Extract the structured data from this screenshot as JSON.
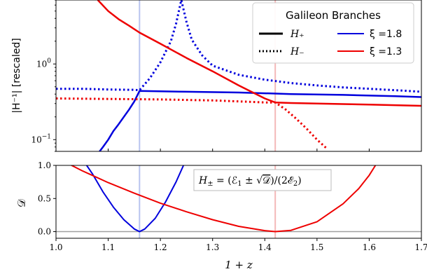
{
  "chart_data": [
    {
      "type": "line",
      "yscale": "log",
      "ylabel": "|H⁻¹| [rescaled]",
      "xlim": [
        1.0,
        1.7
      ],
      "ylim": [
        0.07,
        7.0
      ],
      "yticks": [
        {
          "value": 0.1,
          "base": "10",
          "exp": "−1"
        },
        {
          "value": 1.0,
          "base": "10",
          "exp": "0"
        }
      ],
      "vlines": [
        {
          "x": 1.16,
          "color": "#b8c4ee"
        },
        {
          "x": 1.42,
          "color": "#f4b8b8"
        }
      ],
      "legend": {
        "title": "Galileon Branches",
        "placement": "top-right",
        "style_entries": [
          {
            "label": "H₊",
            "dash": "solid"
          },
          {
            "label": "H₋",
            "dash": "dotted"
          }
        ],
        "color_entries": [
          {
            "label": "ξ =1.8",
            "color": "#0000dd"
          },
          {
            "label": "ξ =1.3",
            "color": "#ee0000"
          }
        ]
      },
      "series": [
        {
          "xi": 1.8,
          "branch": "H+",
          "color": "#0000dd",
          "dash": "solid",
          "x": [
            1.08,
            1.09,
            1.1,
            1.11,
            1.12,
            1.13,
            1.14,
            1.15,
            1.16,
            1.25,
            1.35,
            1.45,
            1.55,
            1.65,
            1.7
          ],
          "y": [
            0.065,
            0.08,
            0.1,
            0.13,
            0.16,
            0.2,
            0.25,
            0.32,
            0.44,
            0.43,
            0.42,
            0.4,
            0.39,
            0.375,
            0.365
          ]
        },
        {
          "xi": 1.8,
          "branch": "H-",
          "color": "#0000dd",
          "dash": "dotted",
          "x": [
            1.0,
            1.05,
            1.1,
            1.15,
            1.16,
            1.18,
            1.2,
            1.22,
            1.23,
            1.24,
            1.25,
            1.26,
            1.28,
            1.3,
            1.35,
            1.4,
            1.45,
            1.5,
            1.55,
            1.6,
            1.65,
            1.7
          ],
          "y": [
            0.47,
            0.47,
            0.46,
            0.455,
            0.45,
            0.65,
            1.05,
            2.0,
            3.4,
            7.0,
            3.6,
            2.1,
            1.3,
            0.95,
            0.72,
            0.62,
            0.56,
            0.52,
            0.49,
            0.47,
            0.45,
            0.43
          ]
        },
        {
          "xi": 1.3,
          "branch": "H+",
          "color": "#ee0000",
          "dash": "solid",
          "x": [
            1.08,
            1.1,
            1.12,
            1.14,
            1.16,
            1.2,
            1.25,
            1.3,
            1.35,
            1.4,
            1.42,
            1.45,
            1.5,
            1.55,
            1.6,
            1.65,
            1.7
          ],
          "y": [
            7.0,
            5.0,
            3.9,
            3.2,
            2.6,
            1.85,
            1.2,
            0.8,
            0.52,
            0.35,
            0.31,
            0.305,
            0.3,
            0.295,
            0.29,
            0.285,
            0.28
          ]
        },
        {
          "xi": 1.3,
          "branch": "H-",
          "color": "#ee0000",
          "dash": "dotted",
          "x": [
            1.0,
            1.1,
            1.2,
            1.3,
            1.35,
            1.4,
            1.42,
            1.44,
            1.46,
            1.48,
            1.5,
            1.52
          ],
          "y": [
            0.35,
            0.345,
            0.34,
            0.33,
            0.32,
            0.31,
            0.31,
            0.25,
            0.19,
            0.14,
            0.1,
            0.075
          ]
        }
      ]
    },
    {
      "type": "line",
      "xlabel": "1 + z",
      "ylabel": "𝒟",
      "xlim": [
        1.0,
        1.7
      ],
      "ylim": [
        -0.1,
        1.0
      ],
      "xticks": [
        "1.0",
        "1.1",
        "1.2",
        "1.3",
        "1.4",
        "1.5",
        "1.6",
        "1.7"
      ],
      "yticks": [
        "0.0",
        "0.5",
        "1.0"
      ],
      "hline": {
        "y": 0,
        "color": "#a0a0a0"
      },
      "vlines": [
        {
          "x": 1.16,
          "color": "#b8c4ee"
        },
        {
          "x": 1.42,
          "color": "#f4b8b8"
        }
      ],
      "annotation": {
        "prefix": "H",
        "sub": "±",
        "mid": " = (ℰ",
        "sub1": "1",
        "pm": " ± √",
        "d": "𝒟",
        "mid2": ")/(2ℰ",
        "sub2": "2",
        "close": ")"
      },
      "series": [
        {
          "xi": 1.8,
          "color": "#0000dd",
          "x": [
            1.05,
            1.07,
            1.09,
            1.11,
            1.13,
            1.15,
            1.16,
            1.17,
            1.19,
            1.21,
            1.23,
            1.25
          ],
          "y": [
            1.1,
            0.87,
            0.6,
            0.37,
            0.18,
            0.04,
            0.0,
            0.04,
            0.2,
            0.45,
            0.75,
            1.1
          ]
        },
        {
          "xi": 1.3,
          "color": "#ee0000",
          "x": [
            1.0,
            1.05,
            1.1,
            1.15,
            1.2,
            1.25,
            1.3,
            1.35,
            1.4,
            1.42,
            1.45,
            1.5,
            1.55,
            1.58,
            1.6,
            1.62
          ],
          "y": [
            1.12,
            0.92,
            0.74,
            0.58,
            0.43,
            0.3,
            0.18,
            0.08,
            0.015,
            0.0,
            0.02,
            0.15,
            0.42,
            0.65,
            0.85,
            1.1
          ]
        }
      ]
    }
  ]
}
